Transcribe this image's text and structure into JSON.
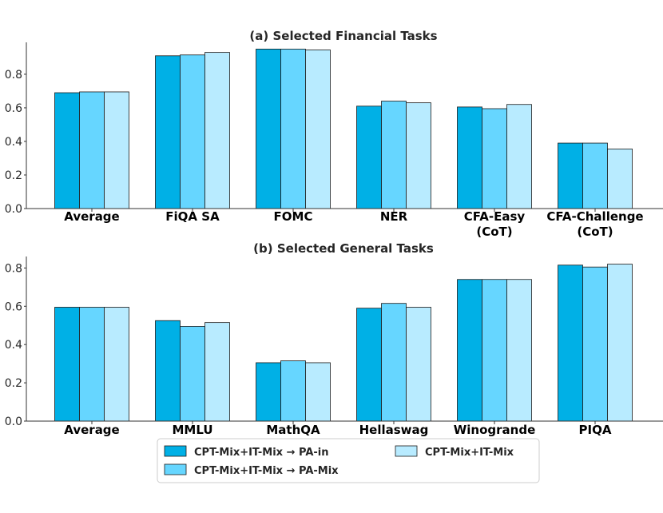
{
  "chart_data": [
    {
      "type": "bar",
      "title": "(a) Selected Financial Tasks",
      "categories": [
        "Average",
        "FiQA SA",
        "FOMC",
        "NER",
        "CFA-Easy\n(CoT)",
        "CFA-Challenge\n(CoT)"
      ],
      "series": [
        {
          "name": "CPT-Mix+IT-Mix → PA-in",
          "values": [
            0.69,
            0.91,
            0.95,
            0.61,
            0.605,
            0.39
          ]
        },
        {
          "name": "CPT-Mix+IT-Mix → PA-Mix",
          "values": [
            0.695,
            0.915,
            0.95,
            0.64,
            0.595,
            0.39
          ]
        },
        {
          "name": "CPT-Mix+IT-Mix",
          "values": [
            0.695,
            0.93,
            0.945,
            0.63,
            0.62,
            0.355
          ]
        }
      ],
      "yticks": [
        "0.0",
        "0.2",
        "0.4",
        "0.6",
        "0.8"
      ],
      "ylim": [
        0,
        0.99
      ],
      "xlabel": "",
      "ylabel": ""
    },
    {
      "type": "bar",
      "title": "(b) Selected General Tasks",
      "categories": [
        "Average",
        "MMLU",
        "MathQA",
        "Hellaswag",
        "Winogrande",
        "PIQA"
      ],
      "series": [
        {
          "name": "CPT-Mix+IT-Mix → PA-in",
          "values": [
            0.595,
            0.525,
            0.305,
            0.59,
            0.74,
            0.815
          ]
        },
        {
          "name": "CPT-Mix+IT-Mix → PA-Mix",
          "values": [
            0.595,
            0.495,
            0.315,
            0.615,
            0.74,
            0.805
          ]
        },
        {
          "name": "CPT-Mix+IT-Mix",
          "values": [
            0.595,
            0.515,
            0.305,
            0.595,
            0.74,
            0.82
          ]
        }
      ],
      "yticks": [
        "0.0",
        "0.2",
        "0.4",
        "0.6",
        "0.8"
      ],
      "ylim": [
        0,
        0.86
      ],
      "xlabel": "",
      "ylabel": ""
    }
  ],
  "colors": {
    "series": [
      "#00b0e6",
      "#66d6ff",
      "#b8ebff"
    ],
    "axis": "#333333",
    "text": "#262626"
  },
  "legend": {
    "placement": "bottom-center",
    "items": [
      {
        "label": "CPT-Mix+IT-Mix → PA-in"
      },
      {
        "label": "CPT-Mix+IT-Mix → PA-Mix"
      },
      {
        "label": "CPT-Mix+IT-Mix"
      }
    ]
  }
}
